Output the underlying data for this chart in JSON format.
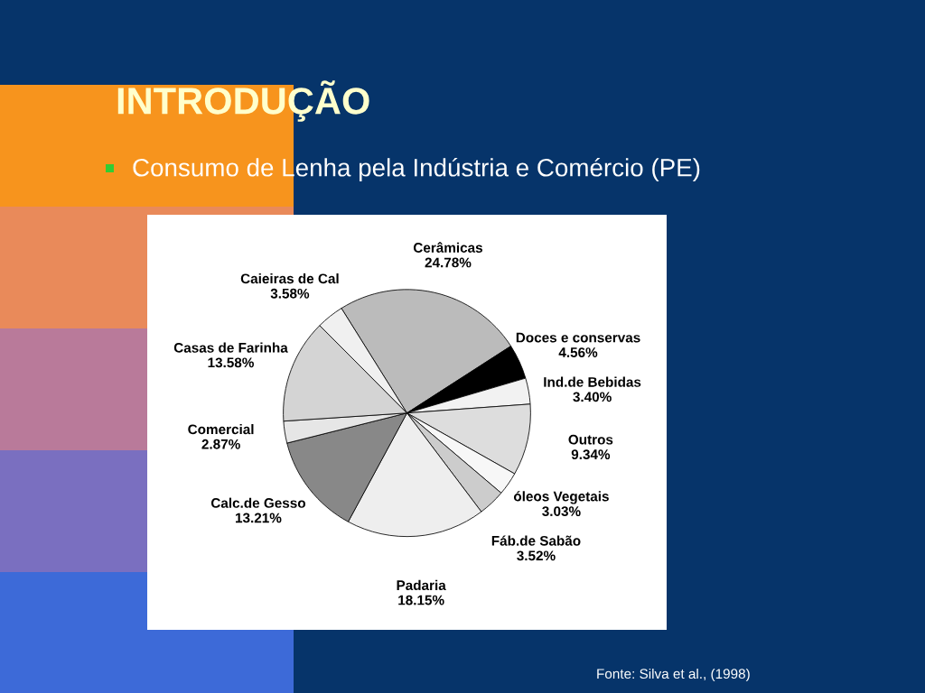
{
  "chart_data": {
    "type": "pie",
    "title": "INTRODUÇÃO",
    "subtitle": "Consumo de Lenha pela Indústria e Comércio (PE)",
    "categories": [
      "Cerâmicas",
      "Doces e conservas",
      "Ind.de Bebidas",
      "Outros",
      "óleos Vegetais",
      "Fáb.de Sabão",
      "Padaria",
      "Calc.de Gesso",
      "Comercial",
      "Casas de Farinha",
      "Caieiras de Cal"
    ],
    "values": [
      24.78,
      4.56,
      3.4,
      9.34,
      3.03,
      3.52,
      18.15,
      13.21,
      2.87,
      13.58,
      3.58
    ],
    "value_labels": [
      "24.78%",
      "4.56%",
      "3.40%",
      "9.34%",
      "3.03%",
      "3.52%",
      "18.15%",
      "13.21%",
      "2.87%",
      "13.58%",
      "3.58%"
    ],
    "colors": [
      "#bbbbbb",
      "#000000",
      "#f2f2f2",
      "#dddddd",
      "#f7f7f7",
      "#cccccc",
      "#eeeeee",
      "#888888",
      "#e6e6e6",
      "#d4d4d4",
      "#f0f0f0"
    ],
    "annotations": [
      "Fonte: Silva et al., (1998)"
    ]
  }
}
